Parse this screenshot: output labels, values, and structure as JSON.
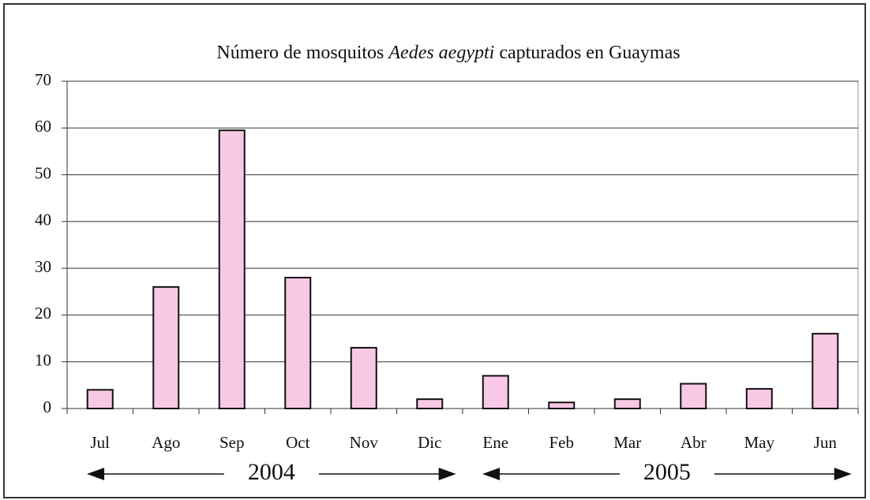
{
  "chart_data": {
    "type": "bar",
    "title": [
      "Número de mosquitos",
      "Aedes aegypti",
      "capturados en Guaymas"
    ],
    "categories": [
      "Jul",
      "Ago",
      "Sep",
      "Oct",
      "Nov",
      "Dic",
      "Ene",
      "Feb",
      "Mar",
      "Abr",
      "May",
      "Jun"
    ],
    "values": [
      4,
      26,
      59.5,
      28,
      13,
      2,
      7,
      1.3,
      2,
      5.3,
      4.2,
      16
    ],
    "color": "#f8c8e4",
    "ylim": [
      0,
      70
    ],
    "yticks": [
      0,
      10,
      20,
      30,
      40,
      50,
      60,
      70
    ],
    "grid": true,
    "groups": [
      {
        "label": "2004",
        "from": "Jul",
        "to": "Dic"
      },
      {
        "label": "2005",
        "from": "Ene",
        "to": "Jun"
      }
    ]
  }
}
